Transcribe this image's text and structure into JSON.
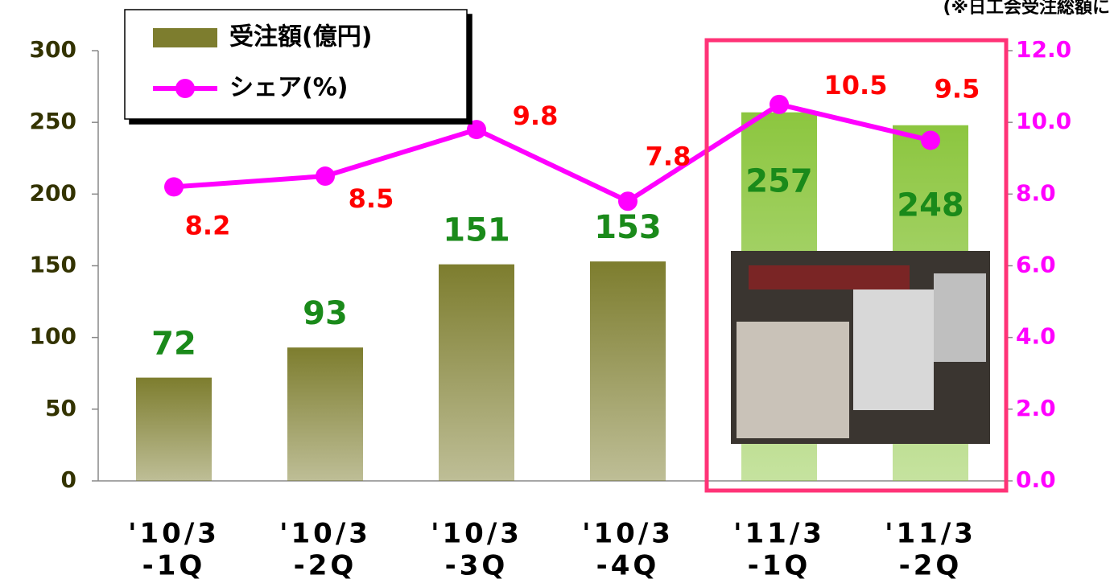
{
  "chart_data": {
    "type": "bar_line",
    "note": "(※日工会受注総額に",
    "categories": [
      [
        "'10/3",
        "-1Q"
      ],
      [
        "'10/3",
        "-2Q"
      ],
      [
        "'10/3",
        "-3Q"
      ],
      [
        "'10/3",
        "-4Q"
      ],
      [
        "'11/3",
        "-1Q"
      ],
      [
        "'11/3",
        "-2Q"
      ]
    ],
    "series": [
      {
        "name": "受注額(億円)",
        "type": "bar",
        "color": "#7d7d2e",
        "colors": [
          "#7d7d2e",
          "#7d7d2e",
          "#7d7d2e",
          "#7d7d2e",
          "#8cc63f",
          "#8cc63f"
        ],
        "label_color": "#1a8a1a",
        "values": [
          72,
          93,
          151,
          153,
          257,
          248
        ]
      },
      {
        "name": "シェア(%)",
        "type": "line",
        "axis": "y2",
        "color": "#ff00ff",
        "label_color": "#ff0000",
        "values": [
          8.2,
          8.5,
          9.8,
          7.8,
          10.5,
          9.5
        ]
      }
    ],
    "ylim": [
      0,
      300
    ],
    "yticks": [
      0,
      50,
      100,
      150,
      200,
      250,
      300
    ],
    "y2lim": [
      0,
      12
    ],
    "y2ticks": [
      {
        "value": 0,
        "label": "0.0"
      },
      {
        "value": 2,
        "label": "2.0"
      },
      {
        "value": 4,
        "label": "4.0"
      },
      {
        "value": 6,
        "label": "6.0"
      },
      {
        "value": 8,
        "label": "8.0"
      },
      {
        "value": 10,
        "label": "10.0"
      },
      {
        "value": 12,
        "label": "12.0"
      }
    ],
    "legend": "upper left"
  }
}
